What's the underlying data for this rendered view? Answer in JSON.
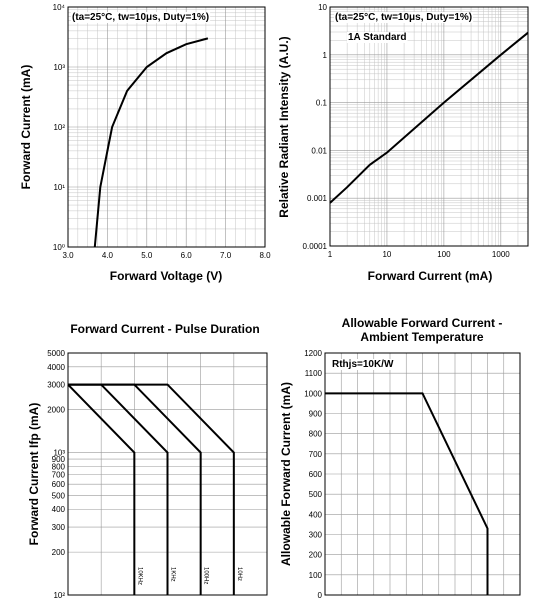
{
  "chart_data": [
    {
      "type": "line",
      "x_label": "Forward Voltage (V)",
      "y_label": "Forward Current (mA)",
      "annotations": [
        "(ta=25°C, tw=10μs, Duty=1%)"
      ],
      "xlim": [
        3,
        8
      ],
      "xticks": [
        {
          "value": 3,
          "label": "3.0"
        },
        {
          "value": 4,
          "label": "4.0"
        },
        {
          "value": 5,
          "label": "5.0"
        },
        {
          "value": 6,
          "label": "6.0"
        },
        {
          "value": 7,
          "label": "7.0"
        },
        {
          "value": 8,
          "label": "8.0"
        }
      ],
      "ylim": [
        1,
        10000
      ],
      "ylog": true,
      "yticks": [
        {
          "value": 1,
          "label": "10⁰"
        },
        {
          "value": 10,
          "label": "10¹"
        },
        {
          "value": 100,
          "label": "10²"
        },
        {
          "value": 1000,
          "label": "10³"
        },
        {
          "value": 10000,
          "label": "10⁴"
        }
      ],
      "grid": true,
      "minor_grid": true,
      "color": "#000000",
      "series": [
        {
          "x": [
            3.68,
            3.82,
            4.0,
            4.12,
            4.5,
            5.0,
            5.5,
            6.0,
            6.55
          ],
          "values": [
            1,
            10,
            40,
            100,
            400,
            1000,
            1700,
            2400,
            3000
          ]
        }
      ]
    },
    {
      "type": "line",
      "x_label": "Forward Current (mA)",
      "y_label": "Relative Radiant Intensity (A.U.)",
      "annotations": [
        "(ta=25°C, tw=10μs, Duty=1%)",
        "1A Standard"
      ],
      "xlim": [
        1,
        3000
      ],
      "xlog": true,
      "xticks": [
        1,
        10,
        100,
        1000
      ],
      "ylim": [
        0.0001,
        10
      ],
      "ylog": true,
      "yticks": [
        0.0001,
        0.001,
        0.01,
        0.1,
        1,
        10
      ],
      "grid": true,
      "minor_grid": true,
      "color": "#000000",
      "series": [
        {
          "x": [
            1,
            2,
            5,
            10,
            100,
            1000,
            3000
          ],
          "values": [
            0.0008,
            0.0017,
            0.005,
            0.009,
            0.1,
            1,
            2.9
          ]
        }
      ]
    },
    {
      "type": "line",
      "title": [
        "Forward Current - Pulse Duration"
      ],
      "y_label": "Forward Current Ifp (mA)",
      "xlim": [
        0,
        6
      ],
      "xgrid": [
        0,
        1,
        2,
        3,
        4,
        5,
        6
      ],
      "ylim": [
        100,
        5000
      ],
      "ylog": true,
      "yticks": [
        {
          "value": 100,
          "label": "10²"
        },
        200,
        300,
        400,
        500,
        600,
        700,
        800,
        900,
        {
          "value": 1000,
          "label": "10³"
        },
        2000,
        3000,
        4000,
        5000
      ],
      "grid": true,
      "color": "#000000",
      "series": [
        {
          "name": "10KHz",
          "x": [
            0,
            2,
            2
          ],
          "values": [
            3000,
            1000,
            100
          ]
        },
        {
          "name": "1KHz",
          "x": [
            0,
            1,
            3,
            3
          ],
          "values": [
            3000,
            3000,
            1000,
            100
          ]
        },
        {
          "name": "100Hz",
          "x": [
            0,
            2,
            4,
            4
          ],
          "values": [
            3000,
            3000,
            1000,
            100
          ]
        },
        {
          "name": "10Hz",
          "x": [
            0,
            3,
            5,
            5
          ],
          "values": [
            3000,
            3000,
            1000,
            100
          ]
        }
      ]
    },
    {
      "type": "line",
      "title": [
        "Allowable Forward Current -",
        "Ambient Temperature"
      ],
      "y_label": "Allowable Forward Current (mA)",
      "annotations": [
        "Rthjs=10K/W"
      ],
      "xlim": [
        0,
        12
      ],
      "xgrid": [
        0,
        1,
        2,
        3,
        4,
        5,
        6,
        7,
        8,
        9,
        10,
        11,
        12
      ],
      "ylim": [
        0,
        1200
      ],
      "yticks": [
        0,
        100,
        200,
        300,
        400,
        500,
        600,
        700,
        800,
        900,
        1000,
        1100,
        1200
      ],
      "grid": true,
      "color": "#000000",
      "series": [
        {
          "x": [
            0,
            6,
            10,
            10
          ],
          "values": [
            1000,
            1000,
            330,
            0
          ]
        }
      ]
    }
  ]
}
